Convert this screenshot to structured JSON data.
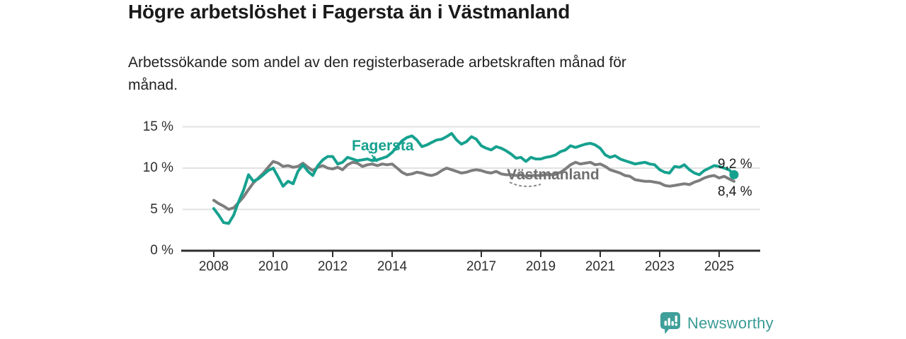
{
  "header": {
    "subtitle_line1": "Arbetssökande som andel av den registerbaserade arbetskraften månad för",
    "subtitle_line2": "månad."
  },
  "chart_data": {
    "type": "line",
    "title": "Högre arbetslöshet i Fagersta än i Västmanland",
    "subtitle": "Arbetssökande som andel av den registerbaserade arbetskraften månad för månad.",
    "unit": "%",
    "xlim": [
      2008,
      2025.5
    ],
    "ylim": [
      0,
      15
    ],
    "grid": true,
    "legend_position": "inline-labels",
    "y_ticks": [
      {
        "value": 0,
        "label": "0 %"
      },
      {
        "value": 5,
        "label": "5 %"
      },
      {
        "value": 10,
        "label": "10 %"
      },
      {
        "value": 15,
        "label": "15 %"
      }
    ],
    "x_ticks": [
      {
        "year": 2008,
        "label": "2008"
      },
      {
        "year": 2010,
        "label": "2010"
      },
      {
        "year": 2012,
        "label": "2012"
      },
      {
        "year": 2014,
        "label": "2014"
      },
      {
        "year": 2017,
        "label": "2017"
      },
      {
        "year": 2019,
        "label": "2019"
      },
      {
        "year": 2021,
        "label": "2021"
      },
      {
        "year": 2023,
        "label": "2023"
      },
      {
        "year": 2025,
        "label": "2025"
      }
    ],
    "series": [
      {
        "name": "Västmanland",
        "color": "#7d7d7d",
        "end_label": "8,4 %",
        "end_value": 8.4,
        "end_dot": false,
        "x": [
          2008.0,
          2008.17,
          2008.33,
          2008.5,
          2008.67,
          2008.83,
          2009.0,
          2009.17,
          2009.33,
          2009.5,
          2009.67,
          2009.83,
          2010.0,
          2010.17,
          2010.33,
          2010.5,
          2010.67,
          2010.83,
          2011.0,
          2011.17,
          2011.33,
          2011.5,
          2011.67,
          2011.83,
          2012.0,
          2012.17,
          2012.33,
          2012.5,
          2012.67,
          2012.83,
          2013.0,
          2013.17,
          2013.33,
          2013.5,
          2013.67,
          2013.83,
          2014.0,
          2014.17,
          2014.33,
          2014.5,
          2014.67,
          2014.83,
          2015.0,
          2015.17,
          2015.33,
          2015.5,
          2015.67,
          2015.83,
          2016.0,
          2016.17,
          2016.33,
          2016.5,
          2016.67,
          2016.83,
          2017.0,
          2017.17,
          2017.33,
          2017.5,
          2017.67,
          2017.83,
          2018.0,
          2018.17,
          2018.33,
          2018.5,
          2018.67,
          2018.83,
          2019.0,
          2019.17,
          2019.33,
          2019.5,
          2019.67,
          2019.83,
          2020.0,
          2020.17,
          2020.33,
          2020.5,
          2020.67,
          2020.83,
          2021.0,
          2021.17,
          2021.33,
          2021.5,
          2021.67,
          2021.83,
          2022.0,
          2022.17,
          2022.33,
          2022.5,
          2022.67,
          2022.83,
          2023.0,
          2023.17,
          2023.33,
          2023.5,
          2023.67,
          2023.83,
          2024.0,
          2024.17,
          2024.33,
          2024.5,
          2024.67,
          2024.83,
          2025.0,
          2025.17,
          2025.33,
          2025.5
        ],
        "values": [
          6.1,
          5.7,
          5.4,
          5.0,
          5.2,
          5.8,
          6.5,
          7.4,
          8.2,
          8.8,
          9.4,
          10.1,
          10.8,
          10.6,
          10.2,
          10.3,
          10.1,
          10.2,
          10.6,
          10.1,
          9.7,
          10.1,
          10.3,
          10.0,
          9.9,
          10.1,
          9.8,
          10.4,
          10.7,
          10.6,
          10.2,
          10.4,
          10.5,
          10.3,
          10.5,
          10.4,
          10.5,
          10.0,
          9.5,
          9.2,
          9.3,
          9.5,
          9.4,
          9.2,
          9.1,
          9.3,
          9.7,
          10.0,
          9.8,
          9.6,
          9.4,
          9.5,
          9.7,
          9.8,
          9.7,
          9.5,
          9.4,
          9.6,
          9.3,
          9.2,
          9.2,
          9.1,
          9.2,
          9.0,
          9.1,
          9.1,
          9.1,
          9.2,
          9.2,
          9.3,
          9.5,
          9.9,
          10.4,
          10.7,
          10.5,
          10.6,
          10.7,
          10.4,
          10.5,
          10.2,
          9.8,
          9.6,
          9.4,
          9.1,
          9.0,
          8.6,
          8.5,
          8.4,
          8.4,
          8.3,
          8.2,
          7.9,
          7.8,
          7.9,
          8.0,
          8.1,
          8.0,
          8.3,
          8.5,
          8.8,
          9.0,
          9.1,
          8.8,
          9.0,
          8.7,
          8.4
        ]
      },
      {
        "name": "Fagersta",
        "color": "#16a18f",
        "end_label": "9,2 %",
        "end_value": 9.2,
        "end_dot": true,
        "x": [
          2008.0,
          2008.17,
          2008.33,
          2008.5,
          2008.67,
          2008.83,
          2009.0,
          2009.17,
          2009.33,
          2009.5,
          2009.67,
          2009.83,
          2010.0,
          2010.17,
          2010.33,
          2010.5,
          2010.67,
          2010.83,
          2011.0,
          2011.17,
          2011.33,
          2011.5,
          2011.67,
          2011.83,
          2012.0,
          2012.17,
          2012.33,
          2012.5,
          2012.67,
          2012.83,
          2013.0,
          2013.17,
          2013.33,
          2013.5,
          2013.67,
          2013.83,
          2014.0,
          2014.17,
          2014.33,
          2014.5,
          2014.67,
          2014.83,
          2015.0,
          2015.17,
          2015.33,
          2015.5,
          2015.67,
          2015.83,
          2016.0,
          2016.17,
          2016.33,
          2016.5,
          2016.67,
          2016.83,
          2017.0,
          2017.17,
          2017.33,
          2017.5,
          2017.67,
          2017.83,
          2018.0,
          2018.17,
          2018.33,
          2018.5,
          2018.67,
          2018.83,
          2019.0,
          2019.17,
          2019.33,
          2019.5,
          2019.67,
          2019.83,
          2020.0,
          2020.17,
          2020.33,
          2020.5,
          2020.67,
          2020.83,
          2021.0,
          2021.17,
          2021.33,
          2021.5,
          2021.67,
          2021.83,
          2022.0,
          2022.17,
          2022.33,
          2022.5,
          2022.67,
          2022.83,
          2023.0,
          2023.17,
          2023.33,
          2023.5,
          2023.67,
          2023.83,
          2024.0,
          2024.17,
          2024.33,
          2024.5,
          2024.67,
          2024.83,
          2025.0,
          2025.17,
          2025.33,
          2025.5
        ],
        "values": [
          5.1,
          4.3,
          3.4,
          3.3,
          4.3,
          5.9,
          7.3,
          9.2,
          8.4,
          8.7,
          9.2,
          9.7,
          10.0,
          8.9,
          7.8,
          8.4,
          8.1,
          9.6,
          10.4,
          9.6,
          9.1,
          10.3,
          11.0,
          11.4,
          11.4,
          10.5,
          10.7,
          11.3,
          11.1,
          10.9,
          11.0,
          11.1,
          10.9,
          11.0,
          11.2,
          11.4,
          11.9,
          12.6,
          13.3,
          13.7,
          13.9,
          13.4,
          12.6,
          12.8,
          13.1,
          13.4,
          13.5,
          13.8,
          14.2,
          13.4,
          12.9,
          13.2,
          13.8,
          13.5,
          12.7,
          12.4,
          12.2,
          12.6,
          12.4,
          12.1,
          11.7,
          11.2,
          11.3,
          10.8,
          11.3,
          11.1,
          11.1,
          11.3,
          11.4,
          11.6,
          12.0,
          12.2,
          12.7,
          12.5,
          12.7,
          12.9,
          13.0,
          12.8,
          12.4,
          11.6,
          11.3,
          11.5,
          11.1,
          10.9,
          10.7,
          10.5,
          10.6,
          10.7,
          10.5,
          10.4,
          9.8,
          9.5,
          9.4,
          10.2,
          10.1,
          10.4,
          9.8,
          9.4,
          9.2,
          9.7,
          10.0,
          10.3,
          10.2,
          10.0,
          9.8,
          9.2
        ]
      }
    ]
  },
  "colors": {
    "fagersta": "#16a18f",
    "vastmanland": "#7d7d7d",
    "grid": "#e2e2e2",
    "axis": "#2e2e2e",
    "label_dark": "#1a1a1a",
    "brand_teal": "#3a9b95"
  },
  "footer": {
    "brand": "Newsworthy"
  }
}
